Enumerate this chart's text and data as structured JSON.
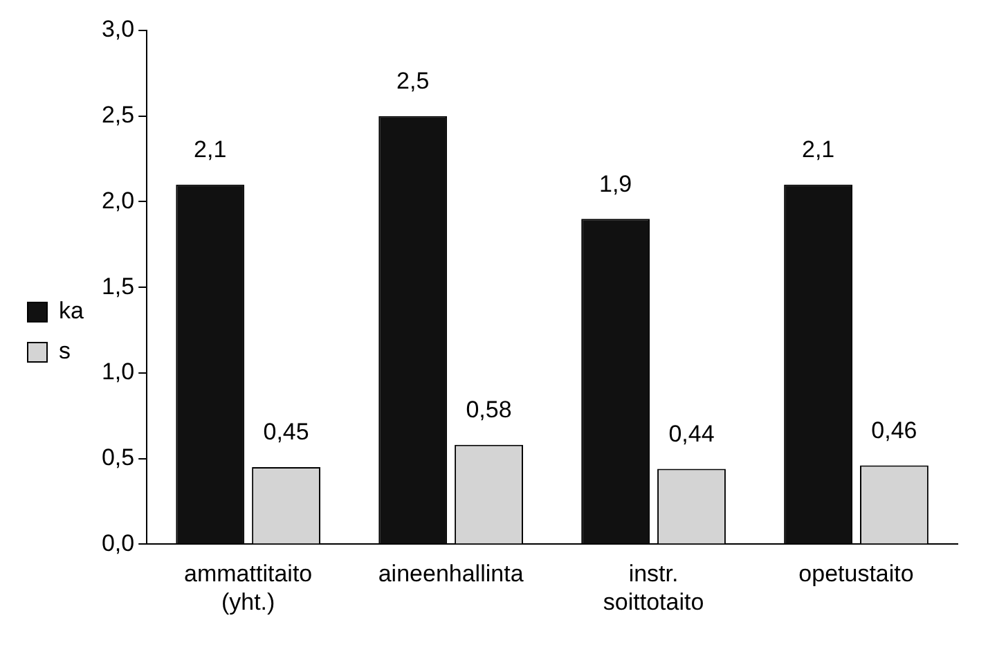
{
  "chart_data": {
    "type": "bar",
    "categories": [
      "ammattitaito (yht.)",
      "aineenhallinta",
      "instr. soittotaito",
      "opetustaito"
    ],
    "series": [
      {
        "name": "ka",
        "color": "#111111",
        "values": [
          2.1,
          2.5,
          1.9,
          2.1
        ],
        "value_labels": [
          "2,1",
          "2,5",
          "1,9",
          "2,1"
        ]
      },
      {
        "name": "s",
        "color": "#d4d4d4",
        "values": [
          0.45,
          0.58,
          0.44,
          0.46
        ],
        "value_labels": [
          "0,45",
          "0,58",
          "0,44",
          "0,46"
        ]
      }
    ],
    "ylim": [
      0,
      3
    ],
    "yticks": [
      {
        "value": 0,
        "label": "0,0"
      },
      {
        "value": 0.5,
        "label": "0,5"
      },
      {
        "value": 1,
        "label": "1,0"
      },
      {
        "value": 1.5,
        "label": "1,5"
      },
      {
        "value": 2,
        "label": "2,0"
      },
      {
        "value": 2.5,
        "label": "2,5"
      },
      {
        "value": 3,
        "label": "3,0"
      }
    ],
    "grid": false,
    "legend": "left"
  }
}
